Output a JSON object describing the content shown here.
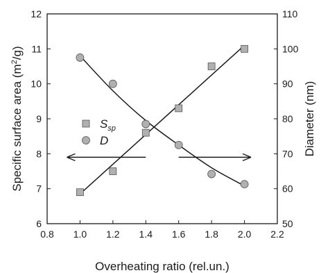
{
  "chart_data": {
    "type": "scatter",
    "xlabel": "Overheating ratio (rel.un.)",
    "ylabel_left_parts": [
      "Specific surface area (m",
      "2",
      "/g)"
    ],
    "ylabel_right": "Diameter (nm)",
    "xlim": [
      0.8,
      2.2
    ],
    "ylim_left": [
      6,
      12
    ],
    "ylim_right": [
      50,
      110
    ],
    "x_ticks": [
      "0.8",
      "1.0",
      "1.2",
      "1.4",
      "1.6",
      "1.8",
      "2.0",
      "2.2"
    ],
    "y_left_ticks": [
      "6",
      "7",
      "8",
      "9",
      "10",
      "11",
      "12"
    ],
    "y_right_ticks": [
      "50",
      "60",
      "70",
      "80",
      "90",
      "100",
      "110"
    ],
    "grid": false,
    "legend_position": "left-middle",
    "series": [
      {
        "name_main": "S",
        "name_sub": "sp",
        "marker": "square",
        "axis": "left",
        "color": "#b0b0b0",
        "x": [
          1.0,
          1.2,
          1.4,
          1.6,
          1.8,
          2.0
        ],
        "y": [
          6.9,
          7.5,
          8.6,
          9.3,
          10.5,
          11.0
        ]
      },
      {
        "name_main": "D",
        "name_sub": "",
        "marker": "circle",
        "axis": "right",
        "color": "#b0b0b0",
        "x": [
          1.0,
          1.2,
          1.4,
          1.6,
          1.8,
          2.0
        ],
        "y": [
          97.5,
          90.0,
          78.5,
          72.5,
          64.2,
          61.3
        ]
      }
    ],
    "fits": [
      {
        "series": "S",
        "axis": "left",
        "x": [
          1.0,
          1.2,
          1.4,
          1.6,
          1.8,
          2.0
        ],
        "y": [
          6.85,
          7.7,
          8.55,
          9.4,
          10.25,
          11.1
        ]
      },
      {
        "series": "D",
        "axis": "right",
        "x": [
          1.0,
          1.2,
          1.4,
          1.6,
          1.8,
          2.0
        ],
        "y": [
          98.0,
          88.0,
          79.5,
          72.5,
          66.0,
          60.8
        ]
      }
    ],
    "arrows": [
      {
        "points_to": "left",
        "from_x": 1.4,
        "to_x": 0.92,
        "y_left": 7.9
      },
      {
        "points_to": "right",
        "from_x": 1.6,
        "to_x": 2.04,
        "y_left": 7.9
      }
    ]
  }
}
